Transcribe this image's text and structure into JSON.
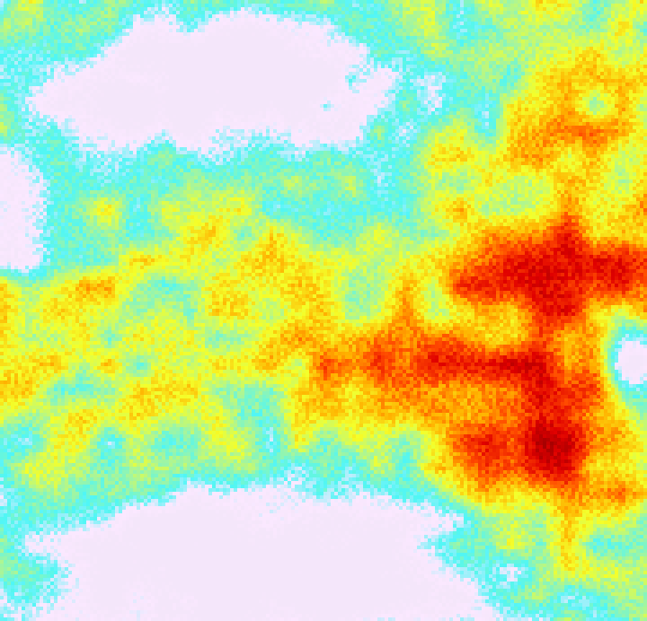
{
  "image": {
    "kind": "false-color satellite imagery",
    "colormap": [
      "#f4e6fa",
      "#fbe8ff",
      "#4ff6f6",
      "#a8f59a",
      "#f4ff2a",
      "#ffb300",
      "#ff4a00",
      "#e00000",
      "#a80000"
    ]
  }
}
